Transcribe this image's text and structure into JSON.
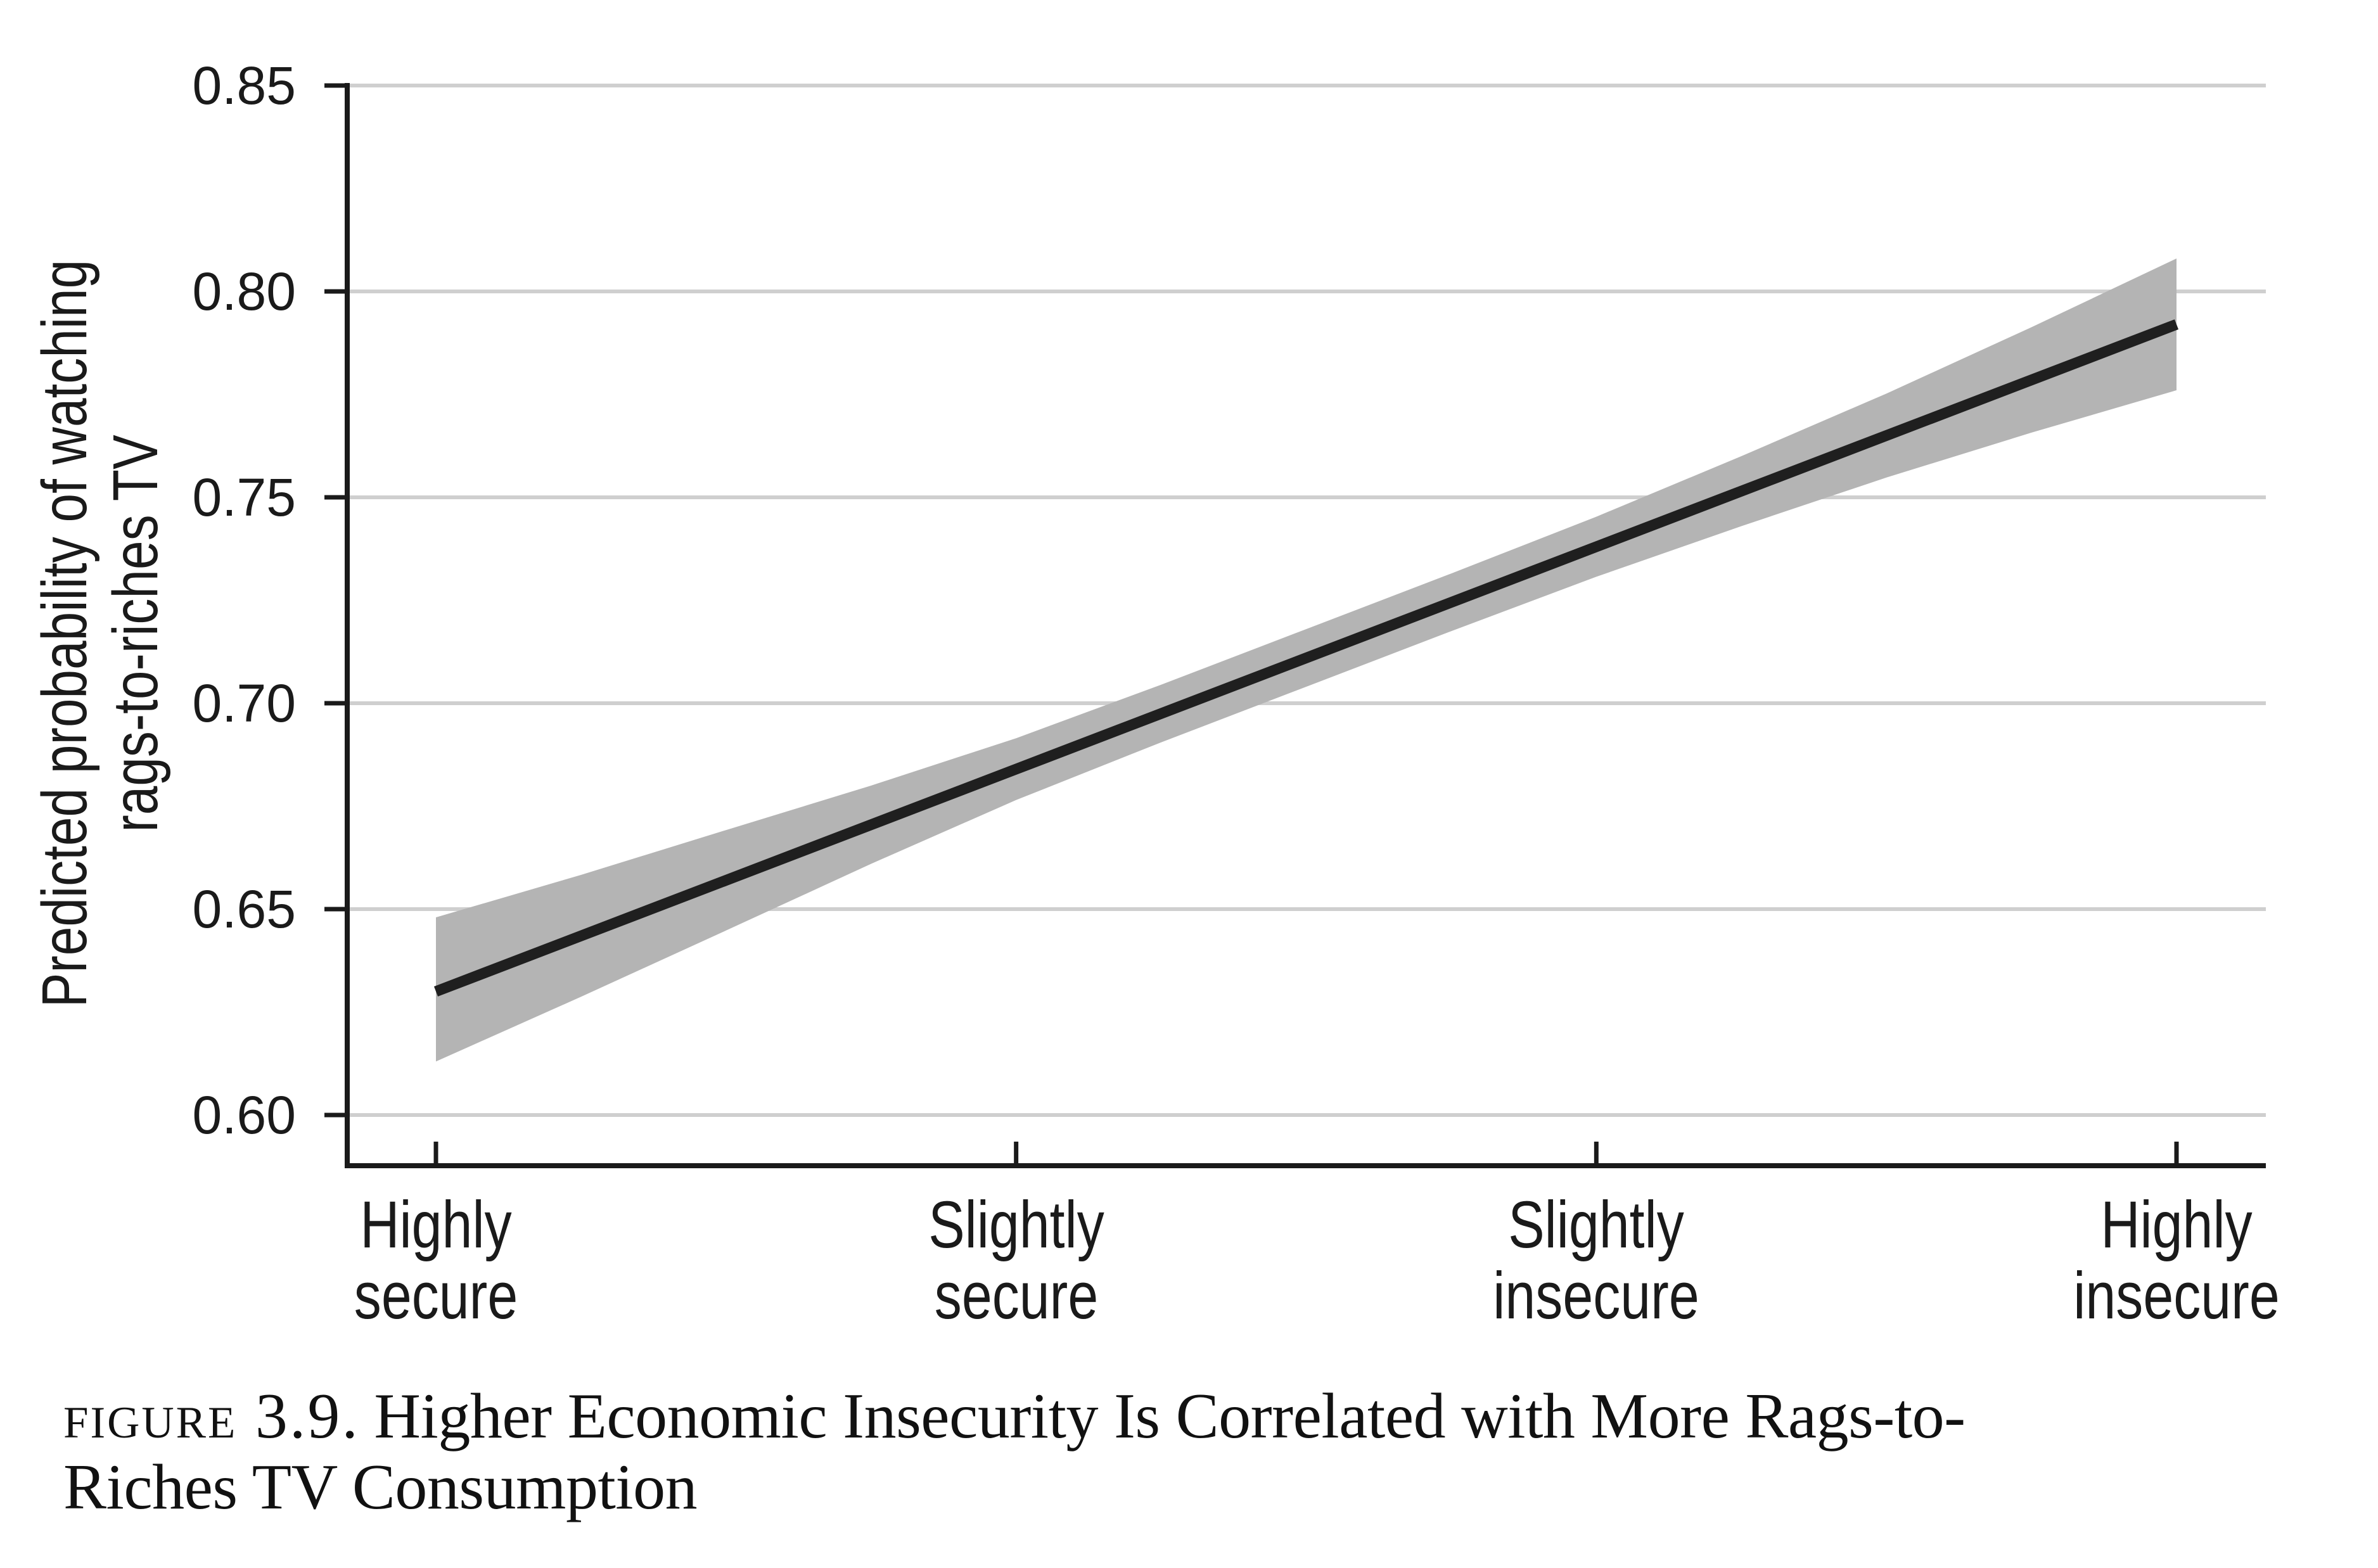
{
  "figure": {
    "caption_label": "Figure 3.9.",
    "caption_line1_rest": "Higher Economic Insecurity Is Correlated with More Rags-to-",
    "caption_line2": "Riches TV Consumption"
  },
  "chart_data": {
    "type": "line",
    "title": "",
    "categories": [
      "Highly secure",
      "Slightly secure",
      "Slightly insecure",
      "Highly insecure"
    ],
    "x_tick_labels": [
      [
        "Highly",
        "secure"
      ],
      [
        "Slightly",
        "secure"
      ],
      [
        "Slightly",
        "insecure"
      ],
      [
        "Highly",
        "insecure"
      ]
    ],
    "series": [
      {
        "name": "Predicted probability of watching rags-to-riches TV",
        "values": [
          0.63,
          0.684,
          0.738,
          0.792
        ]
      }
    ],
    "ci_band": {
      "x_units": [
        0,
        0.25,
        0.5,
        0.75,
        1,
        1.25,
        1.5,
        1.75,
        2,
        2.25,
        2.5,
        2.75,
        3
      ],
      "upper": [
        0.648,
        0.6583,
        0.6692,
        0.68,
        0.6915,
        0.7045,
        0.718,
        0.7315,
        0.7453,
        0.76,
        0.7752,
        0.7913,
        0.808
      ],
      "lower": [
        0.613,
        0.6287,
        0.6448,
        0.661,
        0.6765,
        0.6905,
        0.704,
        0.7175,
        0.7307,
        0.743,
        0.7548,
        0.7657,
        0.776
      ]
    },
    "ylabel_line1": "Predicted probability of watching",
    "ylabel_line2": "rags-to-riches TV",
    "yticks": [
      0.85,
      0.8,
      0.75,
      0.7,
      0.65,
      0.6
    ],
    "ytick_labels": [
      "0.85",
      "0.80",
      "0.75",
      "0.70",
      "0.65",
      "0.60"
    ],
    "ylim": [
      0.587,
      0.85
    ],
    "grid": "horizontal",
    "legend": "none",
    "colors": {
      "band": "#b4b4b4",
      "line": "#1f1f1f",
      "gridline": "#cfcfcf",
      "axis": "#1a1a1a",
      "text": "#111111"
    }
  }
}
